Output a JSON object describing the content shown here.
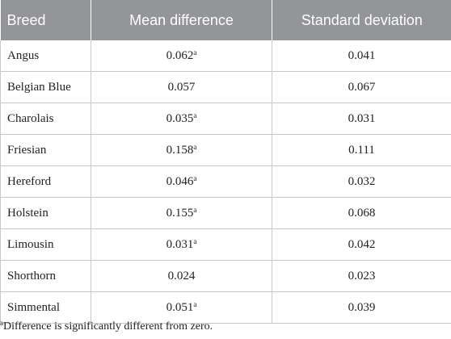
{
  "table": {
    "headers": [
      "Breed",
      "Mean difference",
      "Standard deviation"
    ],
    "rows": [
      {
        "breed": "Angus",
        "mean": "0.062",
        "mean_mark": "a",
        "sd": "0.041"
      },
      {
        "breed": "Belgian Blue",
        "mean": "0.057",
        "mean_mark": "",
        "sd": "0.067"
      },
      {
        "breed": "Charolais",
        "mean": "0.035",
        "mean_mark": "a",
        "sd": "0.031"
      },
      {
        "breed": "Friesian",
        "mean": "0.158",
        "mean_mark": "a",
        "sd": "0.111"
      },
      {
        "breed": "Hereford",
        "mean": "0.046",
        "mean_mark": "a",
        "sd": "0.032"
      },
      {
        "breed": "Holstein",
        "mean": "0.155",
        "mean_mark": "a",
        "sd": "0.068"
      },
      {
        "breed": "Limousin",
        "mean": "0.031",
        "mean_mark": "a",
        "sd": "0.042"
      },
      {
        "breed": "Shorthorn",
        "mean": "0.024",
        "mean_mark": "",
        "sd": "0.023"
      },
      {
        "breed": "Simmental",
        "mean": "0.051",
        "mean_mark": "a",
        "sd": "0.039"
      }
    ],
    "header_color": "#939598"
  },
  "footnote": {
    "mark": "a",
    "text": "Difference is significantly different from zero."
  }
}
